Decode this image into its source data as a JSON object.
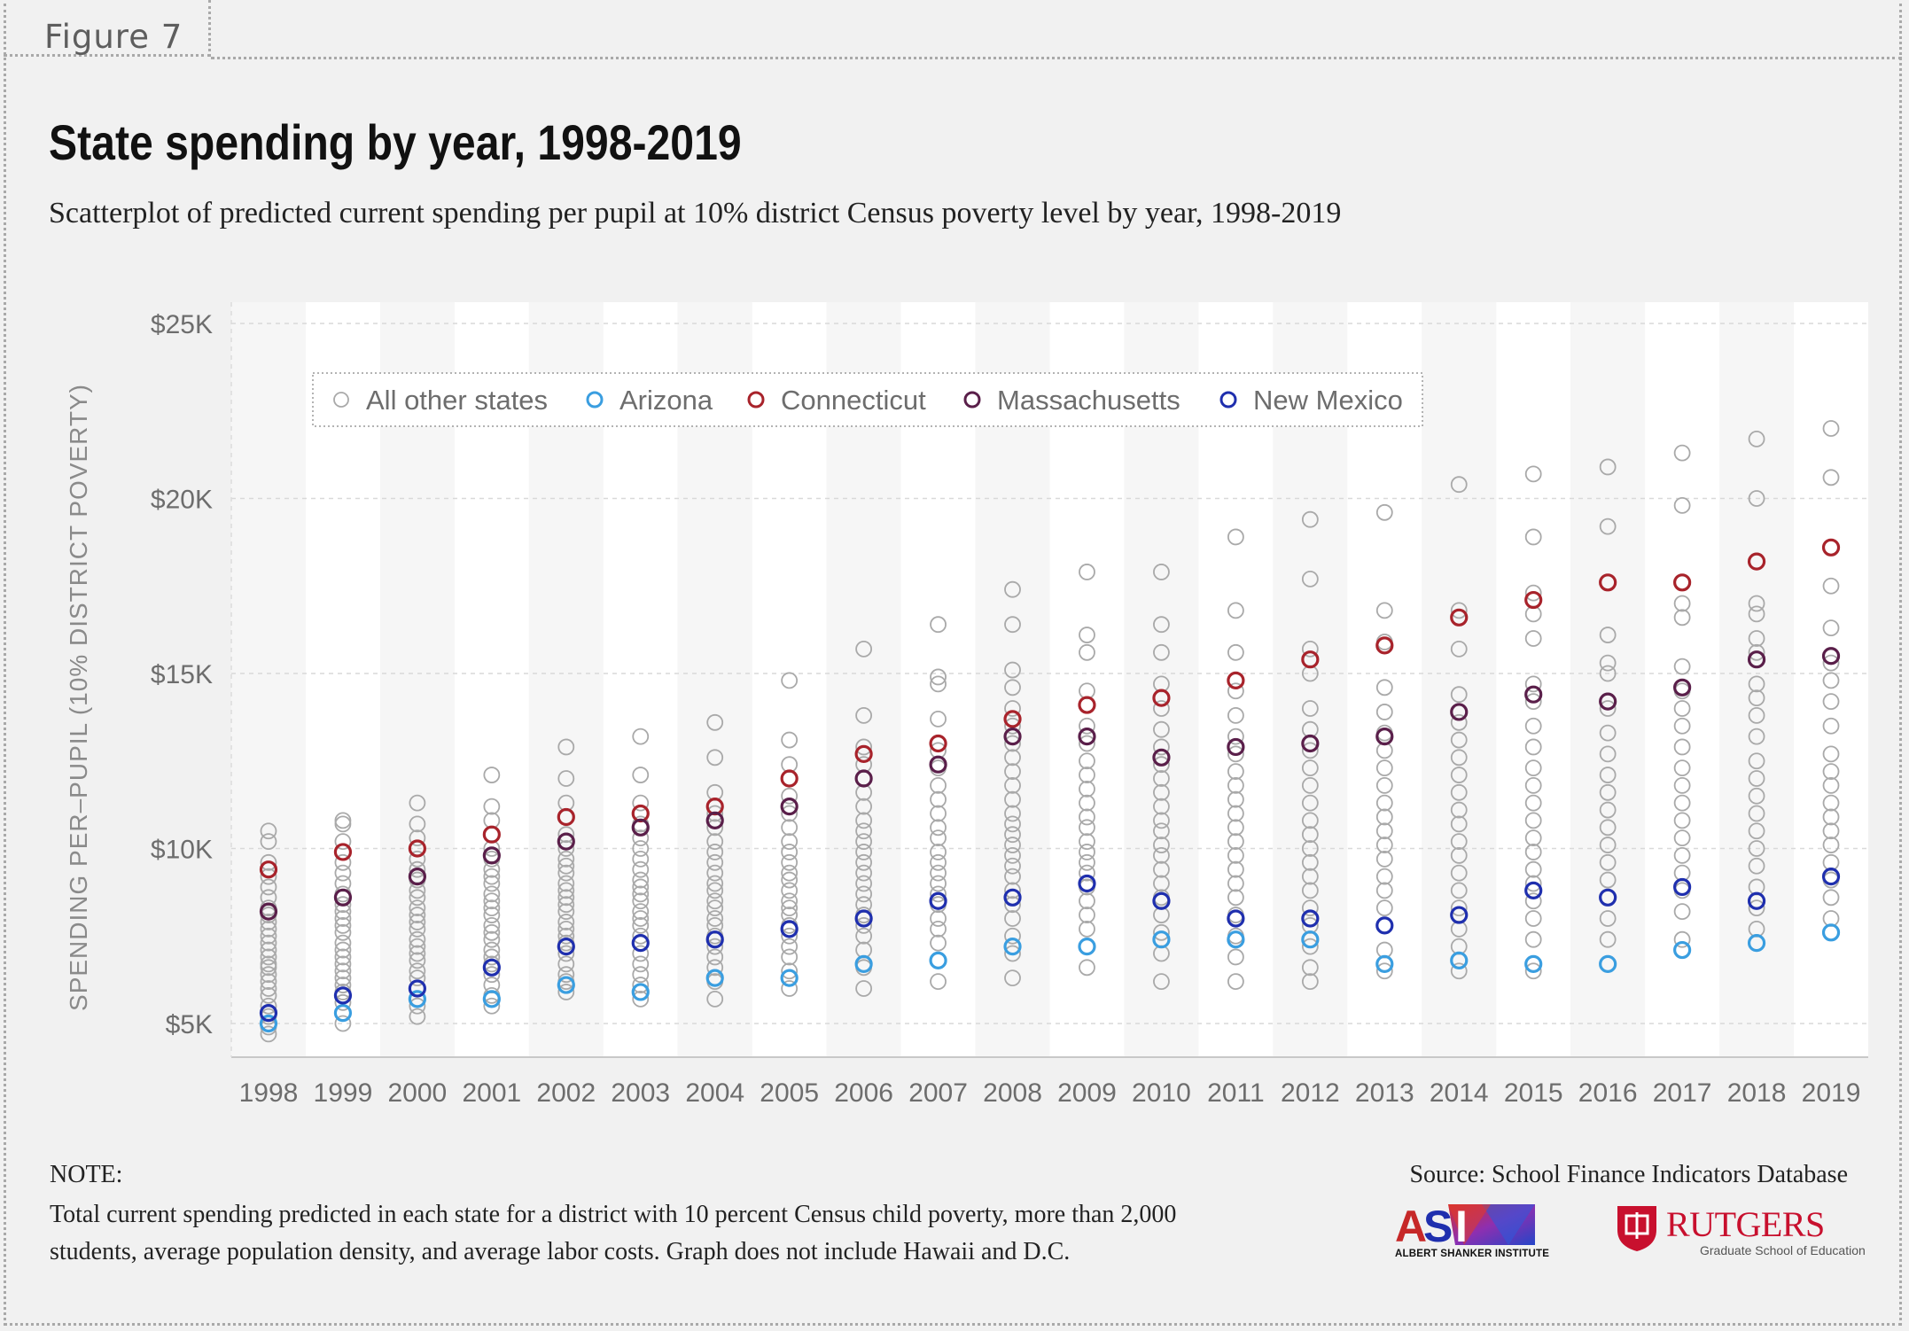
{
  "figure_label": "Figure 7",
  "title": "State spending by year, 1998-2019",
  "subtitle": "Scatterplot of predicted current spending per pupil at 10% district Census poverty level by year, 1998-2019",
  "note_heading": "NOTE:",
  "note_text": "Total current spending predicted in each state for a district with 10 percent Census child poverty, more than 2,000 students, average population density, and average labor costs. Graph does not include Hawaii and D.C.",
  "source": "Source:  School Finance Indicators Database",
  "logos": {
    "asi_mark": "ASI",
    "asi_name": "ALBERT SHANKER INSTITUTE",
    "rutgers_name": "RUTGERS",
    "rutgers_sub": "Graduate School of Education"
  },
  "colors": {
    "All other states": "#a9a9a9",
    "Arizona": "#3a9ee0",
    "Connecticut": "#a8232b",
    "Massachusetts": "#5a1f4a",
    "New Mexico": "#1f2fae",
    "background": "#f1f1f1",
    "plot_band_light": "#ffffff",
    "plot_band_dark": "#f6f6f6"
  },
  "chart_data": {
    "type": "scatter",
    "ylabel": "SPENDING PER–PUPIL (10% DISTRICT POVERTY)",
    "xlabel": "",
    "ylim": [
      4000,
      25500
    ],
    "yticks": [
      5000,
      10000,
      15000,
      20000,
      25000
    ],
    "ytick_labels": [
      "$5K",
      "$10K",
      "$15K",
      "$20K",
      "$25K"
    ],
    "grid": "horizontal dashed",
    "legend": "top-left inside, single row",
    "legend_order": [
      "All other states",
      "Arizona",
      "Connecticut",
      "Massachusetts",
      "New Mexico"
    ],
    "categories": [
      "1998",
      "1999",
      "2000",
      "2001",
      "2002",
      "2003",
      "2004",
      "2005",
      "2006",
      "2007",
      "2008",
      "2009",
      "2010",
      "2011",
      "2012",
      "2013",
      "2014",
      "2015",
      "2016",
      "2017",
      "2018",
      "2019"
    ],
    "series": [
      {
        "name": "Arizona",
        "values": [
          5000,
          5300,
          5700,
          5700,
          6100,
          5900,
          6300,
          6300,
          6700,
          6800,
          7200,
          7200,
          7400,
          7400,
          7400,
          6700,
          6800,
          6700,
          6700,
          7100,
          7300,
          7600
        ]
      },
      {
        "name": "Connecticut",
        "values": [
          9400,
          9900,
          10000,
          10400,
          10900,
          11000,
          11200,
          12000,
          12700,
          13000,
          13700,
          14100,
          14300,
          14800,
          15400,
          15800,
          16600,
          17100,
          17600,
          17600,
          18200,
          18600
        ]
      },
      {
        "name": "Massachusetts",
        "values": [
          8200,
          8600,
          9200,
          9800,
          10200,
          10600,
          10800,
          11200,
          12000,
          12400,
          13200,
          13200,
          12600,
          12900,
          13000,
          13200,
          13900,
          14400,
          14200,
          14600,
          15400,
          15500
        ]
      },
      {
        "name": "New Mexico",
        "values": [
          5300,
          5800,
          6000,
          6600,
          7200,
          7300,
          7400,
          7700,
          8000,
          8500,
          8600,
          9000,
          8500,
          8000,
          8000,
          7800,
          8100,
          8800,
          8600,
          8900,
          8500,
          9200
        ]
      },
      {
        "name": "All other states",
        "values": [
          [
            4700,
            4900,
            5200,
            5500,
            5800,
            6000,
            6200,
            6400,
            6600,
            6700,
            6900,
            7100,
            7300,
            7500,
            7700,
            7900,
            8100,
            8300,
            8600,
            8900,
            9200,
            9600,
            10200,
            10500
          ],
          [
            5000,
            5300,
            5600,
            5900,
            6100,
            6300,
            6500,
            6700,
            6900,
            7100,
            7300,
            7600,
            7800,
            8000,
            8200,
            8400,
            8700,
            9000,
            9300,
            9600,
            9900,
            10200,
            10700,
            10800
          ],
          [
            5200,
            5500,
            5700,
            6000,
            6300,
            6500,
            6800,
            7000,
            7200,
            7400,
            7700,
            7900,
            8100,
            8300,
            8600,
            8800,
            9100,
            9400,
            9700,
            10000,
            10300,
            10700,
            11300
          ],
          [
            5500,
            5800,
            6100,
            6400,
            6700,
            6900,
            7100,
            7400,
            7600,
            7800,
            8100,
            8300,
            8500,
            8700,
            9000,
            9200,
            9400,
            9700,
            10000,
            10400,
            10800,
            11200,
            12100
          ],
          [
            5900,
            6200,
            6400,
            6700,
            7000,
            7300,
            7500,
            7700,
            7900,
            8200,
            8400,
            8600,
            8800,
            9000,
            9300,
            9500,
            9700,
            10000,
            10400,
            10900,
            11300,
            12000,
            12900
          ],
          [
            5700,
            6100,
            6400,
            6700,
            7000,
            7300,
            7500,
            7800,
            8000,
            8200,
            8500,
            8700,
            8900,
            9100,
            9400,
            9700,
            10000,
            10300,
            10700,
            11300,
            12100,
            13200
          ],
          [
            5700,
            6200,
            6600,
            6900,
            7200,
            7500,
            7800,
            8000,
            8300,
            8500,
            8800,
            9000,
            9300,
            9600,
            9900,
            10200,
            10600,
            11000,
            11600,
            12600,
            13600
          ],
          [
            6000,
            6500,
            6900,
            7200,
            7500,
            7800,
            8100,
            8300,
            8500,
            8800,
            9100,
            9300,
            9600,
            9900,
            10200,
            10600,
            11000,
            11500,
            12400,
            13100,
            14800
          ],
          [
            6000,
            6600,
            7100,
            7500,
            7800,
            8100,
            8400,
            8700,
            9000,
            9300,
            9600,
            9900,
            10200,
            10500,
            10800,
            11200,
            11600,
            12000,
            12400,
            12900,
            13800,
            15700
          ],
          [
            6200,
            6800,
            7300,
            7700,
            8000,
            8400,
            8700,
            9000,
            9300,
            9600,
            9900,
            10300,
            10600,
            11000,
            11400,
            11800,
            12300,
            12800,
            13700,
            14700,
            14900,
            16400
          ],
          [
            6300,
            7000,
            7500,
            8000,
            8400,
            8800,
            9200,
            9500,
            9800,
            10100,
            10400,
            10700,
            11000,
            11400,
            11800,
            12200,
            12600,
            13000,
            13500,
            14000,
            14600,
            15100,
            16400,
            17400
          ],
          [
            6600,
            7200,
            7700,
            8100,
            8500,
            8900,
            9300,
            9600,
            9900,
            10200,
            10600,
            10900,
            11300,
            11700,
            12100,
            12500,
            13000,
            13500,
            14100,
            14500,
            15600,
            16100,
            17900
          ],
          [
            6200,
            7000,
            7600,
            8100,
            8600,
            9000,
            9400,
            9800,
            10100,
            10500,
            10800,
            11200,
            11600,
            12000,
            12400,
            12900,
            13400,
            14000,
            14700,
            15600,
            16400,
            17900
          ],
          [
            6200,
            6900,
            7500,
            8100,
            8600,
            9000,
            9400,
            9800,
            10200,
            10600,
            11000,
            11400,
            11800,
            12200,
            12700,
            13200,
            13800,
            14500,
            15600,
            16800,
            18900
          ],
          [
            6200,
            6600,
            7200,
            7800,
            8300,
            8800,
            9200,
            9600,
            10000,
            10400,
            10800,
            11300,
            11800,
            12300,
            12800,
            13400,
            14000,
            15000,
            15700,
            17700,
            19400
          ],
          [
            6500,
            7100,
            7800,
            8300,
            8800,
            9200,
            9700,
            10100,
            10500,
            10900,
            11300,
            11800,
            12300,
            12800,
            13300,
            13900,
            14600,
            15900,
            16800,
            19600
          ],
          [
            6500,
            7200,
            7700,
            8300,
            8800,
            9300,
            9800,
            10200,
            10700,
            11100,
            11600,
            12100,
            12600,
            13100,
            13600,
            14400,
            15700,
            16800,
            20400
          ],
          [
            6500,
            7400,
            8000,
            8500,
            9000,
            9400,
            9900,
            10300,
            10800,
            11300,
            11800,
            12300,
            12900,
            13500,
            14200,
            14700,
            16000,
            16700,
            17300,
            18900,
            20700
          ],
          [
            6700,
            7400,
            8000,
            8600,
            9100,
            9600,
            10100,
            10600,
            11100,
            11600,
            12100,
            12700,
            13300,
            14000,
            15000,
            15300,
            16100,
            19200,
            20900
          ],
          [
            7400,
            8200,
            8800,
            9300,
            9800,
            10300,
            10800,
            11300,
            11800,
            12300,
            12900,
            13500,
            14000,
            14500,
            15200,
            16600,
            17000,
            19800,
            21300
          ],
          [
            7700,
            8300,
            8900,
            9500,
            10000,
            10500,
            11000,
            11500,
            12000,
            12500,
            13200,
            13800,
            14300,
            14700,
            15600,
            16000,
            16700,
            17000,
            20000,
            21700
          ],
          [
            8000,
            8600,
            9100,
            9600,
            10100,
            10500,
            10900,
            11300,
            11800,
            12200,
            12700,
            13500,
            14200,
            14800,
            15300,
            16300,
            17500,
            20600,
            22000
          ]
        ]
      }
    ]
  }
}
